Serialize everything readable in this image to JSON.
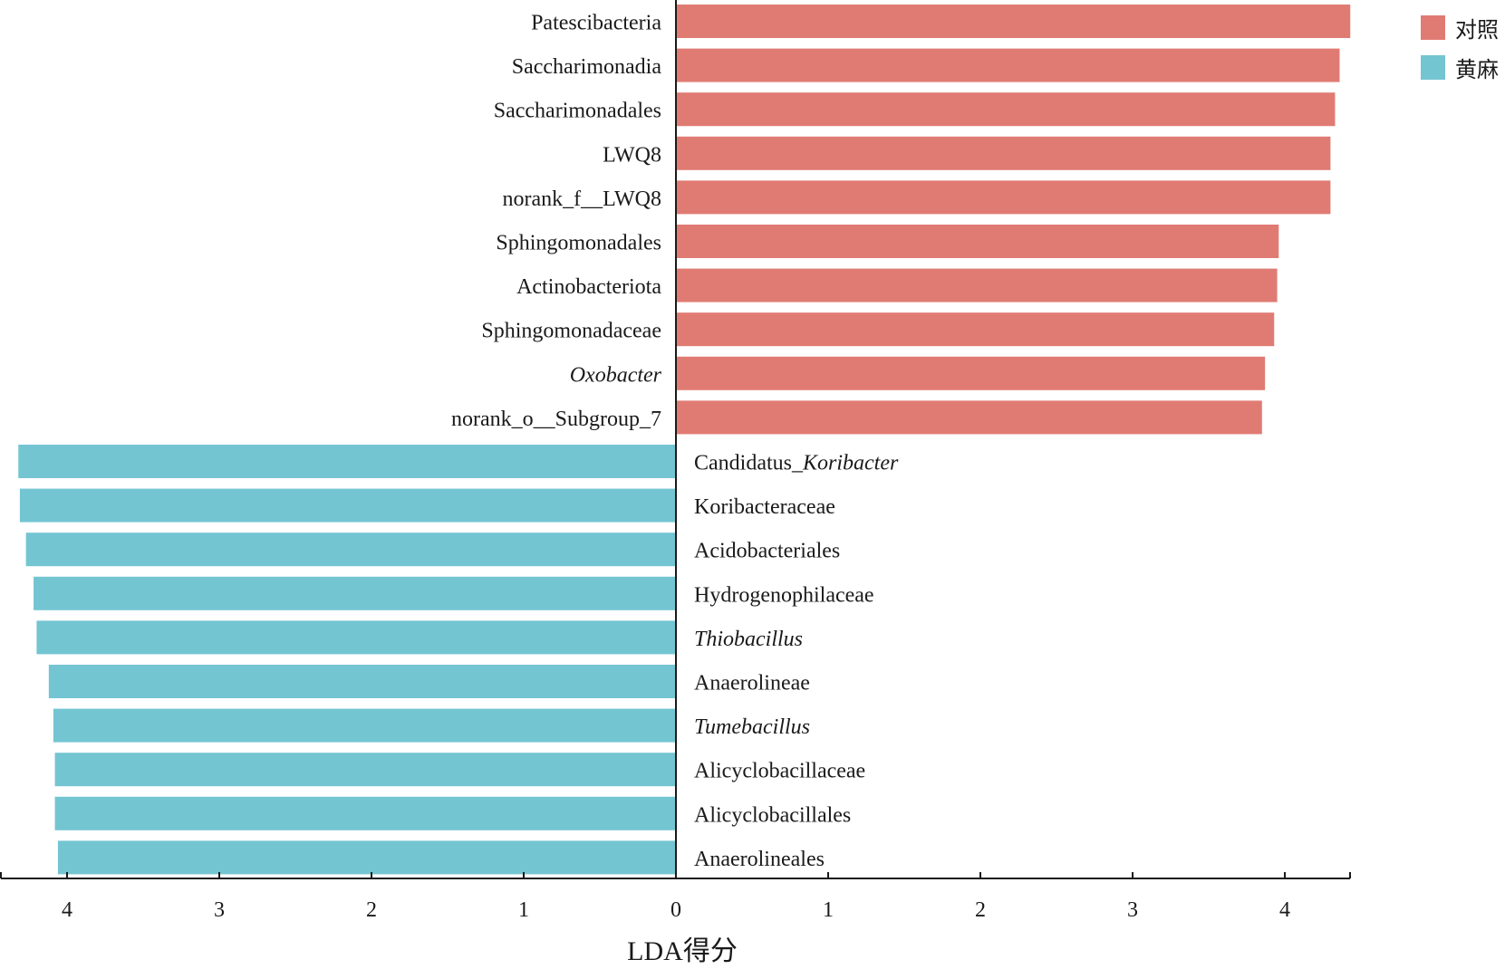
{
  "chart_data": {
    "type": "bar",
    "orientation": "horizontal",
    "xlabel": "LDA得分",
    "ylabel": "",
    "xlim": [
      -4.4,
      4.4
    ],
    "x_ticks_left": [
      "4",
      "3",
      "2",
      "1"
    ],
    "x_ticks_right": [
      "0",
      "1",
      "2",
      "3",
      "4"
    ],
    "grid": false,
    "legend_position": "top-right",
    "legend": [
      {
        "name": "对照",
        "color": "#e07b73"
      },
      {
        "name": "黄麻",
        "color": "#74c5d2"
      }
    ],
    "series": [
      {
        "name": "对照",
        "color": "#e07b73",
        "categories": [
          {
            "label": "Patescibacteria",
            "italic": ""
          },
          {
            "label": "Saccharimonadia",
            "italic": ""
          },
          {
            "label": "Saccharimonadales",
            "italic": ""
          },
          {
            "label": "LWQ8",
            "italic": ""
          },
          {
            "label": "norank_f__LWQ8",
            "italic": ""
          },
          {
            "label": "Sphingomonadales",
            "italic": ""
          },
          {
            "label": "Actinobacteriota",
            "italic": ""
          },
          {
            "label": "Sphingomonadaceae",
            "italic": ""
          },
          {
            "label": "",
            "italic": "Oxobacter"
          },
          {
            "label": "norank_o__Subgroup_7",
            "italic": ""
          }
        ],
        "values": [
          4.43,
          4.36,
          4.33,
          4.3,
          4.3,
          3.96,
          3.95,
          3.93,
          3.87,
          3.85
        ]
      },
      {
        "name": "黄麻",
        "color": "#74c5d2",
        "categories": [
          {
            "label": "Candidatus_",
            "italic": "Koribacter"
          },
          {
            "label": "Koribacteraceae",
            "italic": ""
          },
          {
            "label": "Acidobacteriales",
            "italic": ""
          },
          {
            "label": "Hydrogenophilaceae",
            "italic": ""
          },
          {
            "label": "",
            "italic": "Thiobacillus"
          },
          {
            "label": "Anaerolineae",
            "italic": ""
          },
          {
            "label": "",
            "italic": "Tumebacillus"
          },
          {
            "label": "Alicyclobacillaceae",
            "italic": ""
          },
          {
            "label": "Alicyclobacillales",
            "italic": ""
          },
          {
            "label": "Anaerolineales",
            "italic": ""
          }
        ],
        "values": [
          4.32,
          4.31,
          4.27,
          4.22,
          4.2,
          4.12,
          4.09,
          4.08,
          4.08,
          4.06
        ]
      }
    ]
  }
}
